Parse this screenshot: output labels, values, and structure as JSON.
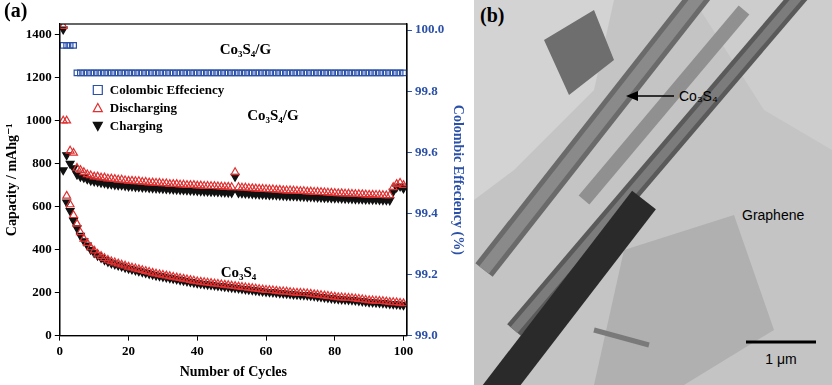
{
  "chart_data": {
    "type": "scatter",
    "panel_label": "(a)",
    "x_label": "Number of Cycles",
    "y_label": "Capacity / mAhg⁻¹",
    "y2_label": "Colombic Effeciency (%)",
    "xlim": [
      0,
      101
    ],
    "xticks": [
      0,
      20,
      40,
      60,
      80,
      100
    ],
    "ylim": [
      0,
      1450
    ],
    "yticks": [
      0,
      200,
      400,
      600,
      800,
      1000,
      1200,
      1400
    ],
    "y2lim": [
      99.0,
      100.02
    ],
    "y2ticks": [
      {
        "value": 99.0,
        "label": "99.0"
      },
      99.2,
      99.4,
      99.6,
      99.8,
      {
        "value": 100.0,
        "label": "100.0"
      }
    ],
    "grid": false,
    "legend": "upper left",
    "annotations": [
      {
        "text": "Co₃S₄/G",
        "x": 54,
        "y": 1330
      },
      {
        "text": "Co₃S₄/G",
        "x": 62,
        "y": 1020
      },
      {
        "text": "Co₃S₄",
        "x": 52,
        "y": 290
      }
    ],
    "x": [
      1,
      2,
      3,
      4,
      5,
      6,
      7,
      8,
      9,
      10,
      11,
      12,
      13,
      14,
      15,
      16,
      17,
      18,
      19,
      20,
      21,
      22,
      23,
      24,
      25,
      26,
      27,
      28,
      29,
      30,
      31,
      32,
      33,
      34,
      35,
      36,
      37,
      38,
      39,
      40,
      41,
      42,
      43,
      44,
      45,
      46,
      47,
      48,
      49,
      50,
      51,
      52,
      53,
      54,
      55,
      56,
      57,
      58,
      59,
      60,
      61,
      62,
      63,
      64,
      65,
      66,
      67,
      68,
      69,
      70,
      71,
      72,
      73,
      74,
      75,
      76,
      77,
      78,
      79,
      80,
      81,
      82,
      83,
      84,
      85,
      86,
      87,
      88,
      89,
      90,
      91,
      92,
      93,
      94,
      95,
      96,
      97,
      98,
      99,
      100
    ],
    "series": [
      {
        "name": "Colombic Effeciency",
        "color": "#2b50a8",
        "marker": "open_square",
        "axis": "y2",
        "values": [
          99.95,
          99.95,
          99.95,
          99.95,
          99.86,
          99.86,
          99.86,
          99.86,
          99.86,
          99.86,
          99.86,
          99.86,
          99.86,
          99.86,
          99.86,
          99.86,
          99.86,
          99.86,
          99.86,
          99.86,
          99.86,
          99.86,
          99.86,
          99.86,
          99.86,
          99.86,
          99.86,
          99.86,
          99.86,
          99.86,
          99.86,
          99.86,
          99.86,
          99.86,
          99.86,
          99.86,
          99.86,
          99.86,
          99.86,
          99.86,
          99.86,
          99.86,
          99.86,
          99.86,
          99.86,
          99.86,
          99.86,
          99.86,
          99.86,
          99.86,
          99.86,
          99.86,
          99.86,
          99.86,
          99.86,
          99.86,
          99.86,
          99.86,
          99.86,
          99.86,
          99.86,
          99.86,
          99.86,
          99.86,
          99.86,
          99.86,
          99.86,
          99.86,
          99.86,
          99.86,
          99.86,
          99.86,
          99.86,
          99.86,
          99.86,
          99.86,
          99.86,
          99.86,
          99.86,
          99.86,
          99.86,
          99.86,
          99.86,
          99.86,
          99.86,
          99.86,
          99.86,
          99.86,
          99.86,
          99.86,
          99.86,
          99.86,
          99.86,
          99.86,
          99.86,
          99.86,
          99.86,
          99.86,
          99.86,
          99.86
        ]
      },
      {
        "name": "Discharging",
        "color": "#e03030",
        "marker": "open_triangle",
        "values": [
          1440,
          1000,
          860,
          850,
          780,
          770,
          760,
          750,
          745,
          740,
          740,
          735,
          735,
          730,
          730,
          728,
          725,
          725,
          722,
          720,
          720,
          718,
          718,
          715,
          715,
          712,
          712,
          710,
          710,
          708,
          708,
          705,
          705,
          705,
          702,
          702,
          700,
          700,
          700,
          698,
          698,
          696,
          696,
          695,
          695,
          694,
          693,
          692,
          692,
          690,
          760,
          690,
          688,
          688,
          686,
          685,
          684,
          683,
          682,
          681,
          680,
          680,
          678,
          678,
          676,
          675,
          675,
          674,
          673,
          672,
          672,
          670,
          670,
          668,
          668,
          667,
          666,
          665,
          664,
          663,
          662,
          662,
          660,
          660,
          659,
          658,
          658,
          657,
          656,
          655,
          655,
          654,
          654,
          653,
          652,
          652,
          690,
          705,
          710,
          700
        ]
      },
      {
        "name": "Charging",
        "color": "#111111",
        "marker": "filled_triangle_down",
        "values": [
          1425,
          840,
          800,
          780,
          750,
          740,
          735,
          728,
          722,
          718,
          716,
          712,
          710,
          706,
          705,
          702,
          700,
          700,
          697,
          695,
          695,
          693,
          692,
          690,
          690,
          688,
          687,
          686,
          685,
          684,
          683,
          682,
          681,
          680,
          679,
          678,
          677,
          676,
          675,
          674,
          673,
          672,
          671,
          670,
          670,
          669,
          668,
          667,
          666,
          665,
          740,
          664,
          663,
          662,
          661,
          660,
          659,
          658,
          657,
          656,
          655,
          655,
          654,
          653,
          652,
          651,
          650,
          650,
          649,
          648,
          647,
          646,
          646,
          645,
          644,
          643,
          642,
          642,
          641,
          640,
          640,
          639,
          638,
          638,
          637,
          636,
          636,
          635,
          634,
          634,
          633,
          633,
          632,
          631,
          631,
          630,
          670,
          690,
          695,
          685
        ]
      },
      {
        "name": "Discharging",
        "color": "#e03030",
        "marker": "open_triangle",
        "values": [
          1000,
          650,
          610,
          560,
          520,
          480,
          450,
          430,
          410,
          395,
          380,
          370,
          360,
          352,
          345,
          340,
          335,
          330,
          325,
          320,
          316,
          312,
          308,
          304,
          300,
          296,
          292,
          288,
          285,
          282,
          279,
          276,
          273,
          270,
          267,
          264,
          261,
          258,
          255,
          252,
          250,
          248,
          246,
          244,
          242,
          240,
          238,
          236,
          234,
          232,
          230,
          228,
          226,
          224,
          222,
          220,
          218,
          216,
          214,
          212,
          211,
          210,
          208,
          206,
          205,
          204,
          202,
          200,
          199,
          198,
          197,
          196,
          194,
          192,
          190,
          188,
          186,
          184,
          182,
          180,
          178,
          177,
          176,
          175,
          174,
          172,
          170,
          168,
          166,
          164,
          163,
          162,
          161,
          160,
          158,
          156,
          155,
          154,
          152,
          150
        ]
      },
      {
        "name": "Charging",
        "color": "#111111",
        "marker": "filled_triangle_down",
        "values": [
          770,
          620,
          580,
          535,
          500,
          465,
          440,
          420,
          400,
          385,
          372,
          362,
          352,
          344,
          337,
          332,
          327,
          322,
          317,
          312,
          308,
          304,
          300,
          296,
          292,
          288,
          284,
          280,
          277,
          274,
          271,
          268,
          265,
          262,
          259,
          256,
          253,
          250,
          247,
          244,
          242,
          240,
          238,
          236,
          234,
          232,
          230,
          228,
          226,
          224,
          222,
          220,
          218,
          216,
          214,
          212,
          210,
          208,
          206,
          204,
          203,
          202,
          200,
          198,
          197,
          196,
          194,
          192,
          191,
          190,
          189,
          188,
          186,
          184,
          182,
          180,
          178,
          176,
          174,
          172,
          170,
          169,
          168,
          167,
          166,
          164,
          162,
          160,
          158,
          156,
          155,
          154,
          153,
          152,
          150,
          148,
          147,
          146,
          144,
          142
        ]
      }
    ]
  },
  "image": {
    "label": "(b)",
    "annotations": [
      "Co₃S₄",
      "Graphene"
    ],
    "scale_bar": "1 μm"
  }
}
